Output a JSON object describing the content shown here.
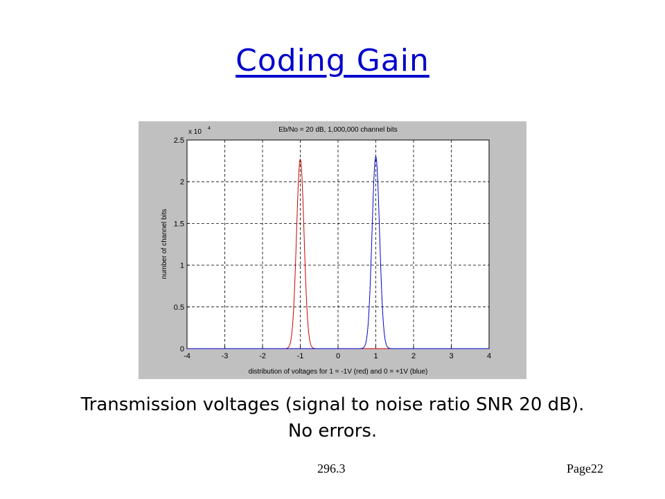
{
  "slide": {
    "title": "Coding Gain",
    "caption_line1": "Transmission voltages (signal to noise ratio SNR 20 dB).",
    "caption_line2": "No errors.",
    "footer_id": "296.3",
    "footer_page": "Page22"
  },
  "colors": {
    "title": "#0000cc",
    "figure_bg": "#c0c0c0",
    "red_series": "#cc0000",
    "blue_series": "#0000cc"
  },
  "chart_data": {
    "type": "line",
    "title": "Eb/No = 20 dB, 1,000,000 channel bits",
    "xlabel": "distribution of voltages for 1 = -1V (red) and 0 = +1V (blue)",
    "ylabel": "number of channel bits",
    "y_multiplier": "x 10",
    "y_multiplier_exp": "4",
    "xlim": [
      -4,
      4
    ],
    "ylim": [
      0,
      2.5
    ],
    "xticks": [
      "-4",
      "-3",
      "-2",
      "-1",
      "0",
      "1",
      "2",
      "3",
      "4"
    ],
    "yticks": [
      "0",
      "0.5",
      "1",
      "1.5",
      "2",
      "2.5"
    ],
    "grid": true,
    "series": [
      {
        "color": "red",
        "peak_x": -1,
        "peak_y": 2.27,
        "sigma": 0.1
      },
      {
        "color": "blue",
        "peak_x": 1,
        "peak_y": 2.3,
        "sigma": 0.1
      }
    ]
  }
}
